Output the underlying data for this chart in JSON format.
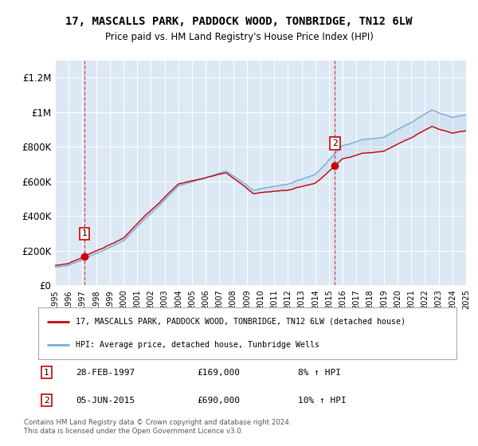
{
  "title": "17, MASCALLS PARK, PADDOCK WOOD, TONBRIDGE, TN12 6LW",
  "subtitle": "Price paid vs. HM Land Registry's House Price Index (HPI)",
  "background_color": "#dce9f5",
  "red_color": "#cc0000",
  "blue_color": "#7aaed6",
  "ylim": [
    0,
    1300000
  ],
  "yticks": [
    0,
    200000,
    400000,
    600000,
    800000,
    1000000,
    1200000
  ],
  "ytick_labels": [
    "£0",
    "£200K",
    "£400K",
    "£600K",
    "£800K",
    "£1M",
    "£1.2M"
  ],
  "xstart": 1995,
  "xend": 2025,
  "sale1_year": 1997.16,
  "sale1_price": 169000,
  "sale2_year": 2015.43,
  "sale2_price": 690000,
  "sale1_date": "28-FEB-1997",
  "sale1_hpi_change": "8% ↑ HPI",
  "sale2_date": "05-JUN-2015",
  "sale2_hpi_change": "10% ↑ HPI",
  "legend_label_red": "17, MASCALLS PARK, PADDOCK WOOD, TONBRIDGE, TN12 6LW (detached house)",
  "legend_label_blue": "HPI: Average price, detached house, Tunbridge Wells",
  "footer": "Contains HM Land Registry data © Crown copyright and database right 2024.\nThis data is licensed under the Open Government Licence v3.0."
}
